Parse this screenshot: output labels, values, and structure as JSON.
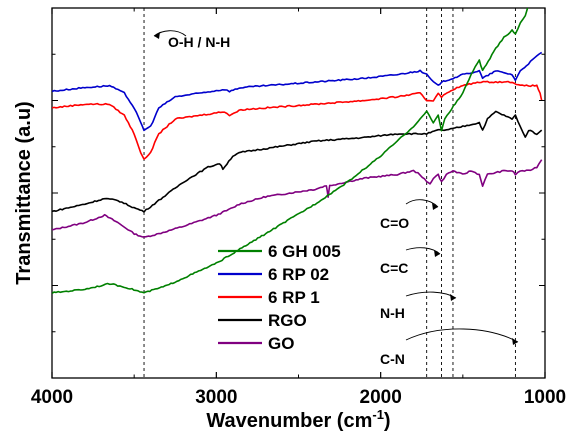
{
  "chart_data": {
    "type": "line",
    "xlabel_main": "Wavenumber (cm",
    "xlabel_sup": "-1",
    "xlabel_close": ")",
    "ylabel": "Transmittance (a.u)",
    "x_reversed": true,
    "xlim": [
      4000,
      1000
    ],
    "ylim": [
      0,
      100
    ],
    "xticks": [
      4000,
      3000,
      2000,
      1000
    ],
    "xticklabels": [
      "4000",
      "3000",
      "2000",
      "1000"
    ],
    "yticks_labeled": false,
    "grid": false,
    "legend_position": "lower-center",
    "reference_lines": [
      3440,
      1720,
      1630,
      1560,
      1180
    ],
    "annotations": [
      "O-H / N-H",
      "C=O",
      "C=C",
      "N-H",
      "C-N"
    ],
    "series": [
      {
        "name": "6 GH 005",
        "color": "#008000",
        "points": [
          [
            4000,
            23
          ],
          [
            3800,
            24
          ],
          [
            3650,
            25.5
          ],
          [
            3550,
            24.5
          ],
          [
            3440,
            23
          ],
          [
            3300,
            25
          ],
          [
            3000,
            31
          ],
          [
            2700,
            39
          ],
          [
            2400,
            47
          ],
          [
            2200,
            53
          ],
          [
            2000,
            60
          ],
          [
            1900,
            64
          ],
          [
            1800,
            68
          ],
          [
            1760,
            70
          ],
          [
            1720,
            72
          ],
          [
            1680,
            69
          ],
          [
            1650,
            71
          ],
          [
            1630,
            67
          ],
          [
            1610,
            70
          ],
          [
            1580,
            72
          ],
          [
            1500,
            77
          ],
          [
            1450,
            82
          ],
          [
            1400,
            86
          ],
          [
            1380,
            83
          ],
          [
            1300,
            89
          ],
          [
            1250,
            92
          ],
          [
            1200,
            94
          ],
          [
            1180,
            93
          ],
          [
            1150,
            96
          ],
          [
            1120,
            98
          ],
          [
            1100,
            101
          ],
          [
            1080,
            103
          ]
        ]
      },
      {
        "name": "6 RP 02",
        "color": "#0000cc",
        "points": [
          [
            4000,
            77.5
          ],
          [
            3800,
            78.5
          ],
          [
            3650,
            79
          ],
          [
            3560,
            77
          ],
          [
            3500,
            73
          ],
          [
            3460,
            69
          ],
          [
            3440,
            67
          ],
          [
            3400,
            68
          ],
          [
            3350,
            73
          ],
          [
            3250,
            76
          ],
          [
            3100,
            77
          ],
          [
            2950,
            78
          ],
          [
            2920,
            77.5
          ],
          [
            2850,
            78.5
          ],
          [
            2700,
            79
          ],
          [
            2400,
            80
          ],
          [
            2100,
            81
          ],
          [
            1900,
            82
          ],
          [
            1760,
            83
          ],
          [
            1720,
            82
          ],
          [
            1680,
            80
          ],
          [
            1650,
            79
          ],
          [
            1630,
            80
          ],
          [
            1560,
            81
          ],
          [
            1500,
            82
          ],
          [
            1400,
            83
          ],
          [
            1380,
            81
          ],
          [
            1300,
            83
          ],
          [
            1200,
            82
          ],
          [
            1180,
            80.5
          ],
          [
            1150,
            83
          ],
          [
            1100,
            85
          ],
          [
            1050,
            87
          ],
          [
            1020,
            88
          ]
        ]
      },
      {
        "name": "6 RP 1",
        "color": "#ff0000",
        "points": [
          [
            4000,
            73
          ],
          [
            3800,
            74
          ],
          [
            3650,
            74
          ],
          [
            3560,
            71
          ],
          [
            3500,
            66
          ],
          [
            3460,
            61
          ],
          [
            3440,
            59
          ],
          [
            3400,
            61
          ],
          [
            3350,
            66
          ],
          [
            3250,
            70
          ],
          [
            3100,
            71
          ],
          [
            2950,
            72
          ],
          [
            2920,
            71
          ],
          [
            2850,
            72.5
          ],
          [
            2700,
            73
          ],
          [
            2400,
            74
          ],
          [
            2100,
            75
          ],
          [
            1900,
            76
          ],
          [
            1760,
            77
          ],
          [
            1720,
            75
          ],
          [
            1680,
            75
          ],
          [
            1650,
            77
          ],
          [
            1630,
            76
          ],
          [
            1560,
            78
          ],
          [
            1500,
            79
          ],
          [
            1400,
            80
          ],
          [
            1300,
            80
          ],
          [
            1200,
            80
          ],
          [
            1150,
            79
          ],
          [
            1100,
            79
          ],
          [
            1050,
            79
          ],
          [
            1030,
            77
          ],
          [
            1020,
            75
          ]
        ]
      },
      {
        "name": "RGO",
        "color": "#000000",
        "points": [
          [
            4000,
            45
          ],
          [
            3800,
            47
          ],
          [
            3680,
            48.5
          ],
          [
            3600,
            48
          ],
          [
            3500,
            46
          ],
          [
            3440,
            45
          ],
          [
            3350,
            48
          ],
          [
            3200,
            53
          ],
          [
            3050,
            57
          ],
          [
            2980,
            58
          ],
          [
            2960,
            56.5
          ],
          [
            2900,
            60
          ],
          [
            2850,
            61
          ],
          [
            2700,
            62
          ],
          [
            2400,
            64
          ],
          [
            2100,
            65
          ],
          [
            1900,
            66
          ],
          [
            1750,
            66
          ],
          [
            1720,
            66
          ],
          [
            1650,
            67
          ],
          [
            1600,
            67
          ],
          [
            1500,
            68
          ],
          [
            1400,
            69
          ],
          [
            1380,
            67
          ],
          [
            1350,
            70
          ],
          [
            1300,
            72
          ],
          [
            1250,
            71
          ],
          [
            1200,
            70
          ],
          [
            1180,
            71
          ],
          [
            1150,
            68
          ],
          [
            1120,
            65
          ],
          [
            1100,
            67
          ],
          [
            1050,
            66
          ],
          [
            1020,
            67
          ]
        ]
      },
      {
        "name": "GO",
        "color": "#800080",
        "points": [
          [
            4000,
            40
          ],
          [
            3800,
            42
          ],
          [
            3680,
            44
          ],
          [
            3600,
            42
          ],
          [
            3500,
            39
          ],
          [
            3440,
            38
          ],
          [
            3350,
            39
          ],
          [
            3200,
            41
          ],
          [
            3000,
            44
          ],
          [
            2900,
            46
          ],
          [
            2860,
            47
          ],
          [
            2700,
            49
          ],
          [
            2400,
            51
          ],
          [
            2330,
            52
          ],
          [
            2320,
            49
          ],
          [
            2310,
            52
          ],
          [
            2100,
            54
          ],
          [
            1900,
            55
          ],
          [
            1800,
            56
          ],
          [
            1760,
            55
          ],
          [
            1720,
            53
          ],
          [
            1700,
            52.5
          ],
          [
            1680,
            54
          ],
          [
            1650,
            55
          ],
          [
            1630,
            53
          ],
          [
            1600,
            55
          ],
          [
            1560,
            56
          ],
          [
            1500,
            55
          ],
          [
            1450,
            56
          ],
          [
            1400,
            55
          ],
          [
            1380,
            52
          ],
          [
            1350,
            55
          ],
          [
            1250,
            56
          ],
          [
            1200,
            56
          ],
          [
            1180,
            55
          ],
          [
            1150,
            56
          ],
          [
            1100,
            56
          ],
          [
            1050,
            57
          ],
          [
            1020,
            59
          ]
        ]
      }
    ]
  }
}
